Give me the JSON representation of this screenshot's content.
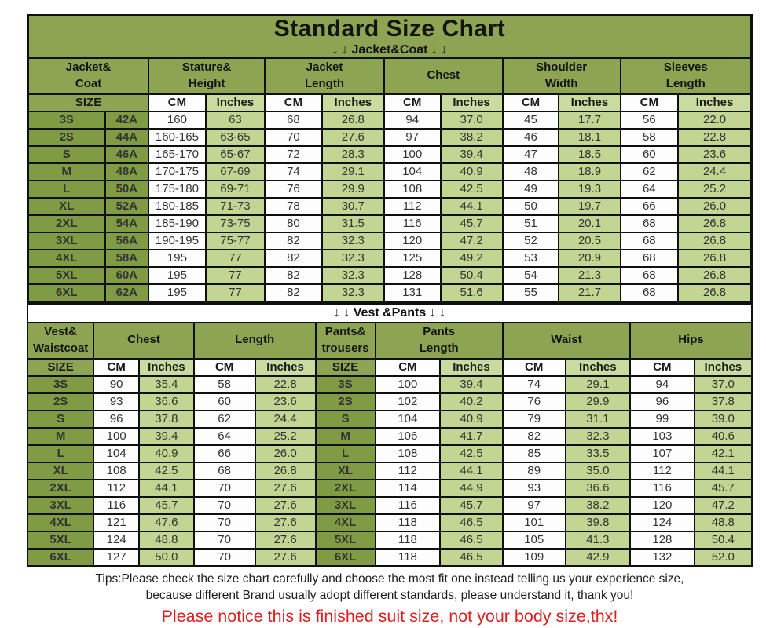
{
  "title": "Standard Size Chart",
  "colors": {
    "header_green": "#8da452",
    "size_cell_green": "#7f9b43",
    "inches_cell_green": "#c2d592",
    "cm_cell_white": "#fdfdfd",
    "border_black": "#101010",
    "notice_red": "#dd1f1f"
  },
  "jacket_section": {
    "banner": "↓ ↓  Jacket&Coat ↓ ↓",
    "groups": [
      "Jacket&\nCoat",
      "Stature&\nHeight",
      "Jacket\nLength",
      "Chest",
      "Shoulder\nWidth",
      "Sleeves\nLength"
    ],
    "subheader": {
      "size": "SIZE",
      "cm": "CM",
      "inches": "Inches"
    },
    "rows": [
      [
        "3S",
        "42A",
        "160",
        "63",
        "68",
        "26.8",
        "94",
        "37.0",
        "45",
        "17.7",
        "56",
        "22.0"
      ],
      [
        "2S",
        "44A",
        "160-165",
        "63-65",
        "70",
        "27.6",
        "97",
        "38.2",
        "46",
        "18.1",
        "58",
        "22.8"
      ],
      [
        "S",
        "46A",
        "165-170",
        "65-67",
        "72",
        "28.3",
        "100",
        "39.4",
        "47",
        "18.5",
        "60",
        "23.6"
      ],
      [
        "M",
        "48A",
        "170-175",
        "67-69",
        "74",
        "29.1",
        "104",
        "40.9",
        "48",
        "18.9",
        "62",
        "24.4"
      ],
      [
        "L",
        "50A",
        "175-180",
        "69-71",
        "76",
        "29.9",
        "108",
        "42.5",
        "49",
        "19.3",
        "64",
        "25.2"
      ],
      [
        "XL",
        "52A",
        "180-185",
        "71-73",
        "78",
        "30.7",
        "112",
        "44.1",
        "50",
        "19.7",
        "66",
        "26.0"
      ],
      [
        "2XL",
        "54A",
        "185-190",
        "73-75",
        "80",
        "31.5",
        "116",
        "45.7",
        "51",
        "20.1",
        "68",
        "26.8"
      ],
      [
        "3XL",
        "56A",
        "190-195",
        "75-77",
        "82",
        "32.3",
        "120",
        "47.2",
        "52",
        "20.5",
        "68",
        "26.8"
      ],
      [
        "4XL",
        "58A",
        "195",
        "77",
        "82",
        "32.3",
        "125",
        "49.2",
        "53",
        "20.9",
        "68",
        "26.8"
      ],
      [
        "5XL",
        "60A",
        "195",
        "77",
        "82",
        "32.3",
        "128",
        "50.4",
        "54",
        "21.3",
        "68",
        "26.8"
      ],
      [
        "6XL",
        "62A",
        "195",
        "77",
        "82",
        "32.3",
        "131",
        "51.6",
        "55",
        "21.7",
        "68",
        "26.8"
      ]
    ]
  },
  "vest_section": {
    "banner": "↓ ↓  Vest &Pants ↓ ↓",
    "groups": [
      "Vest&\nWaistcoat",
      "Chest",
      "Length",
      "Pants&\ntrousers",
      "Pants\nLength",
      "Waist",
      "Hips"
    ],
    "subheader": {
      "size": "SIZE",
      "cm": "CM",
      "inches": "Inches"
    },
    "rows": [
      [
        "3S",
        "90",
        "35.4",
        "58",
        "22.8",
        "3S",
        "100",
        "39.4",
        "74",
        "29.1",
        "94",
        "37.0"
      ],
      [
        "2S",
        "93",
        "36.6",
        "60",
        "23.6",
        "2S",
        "102",
        "40.2",
        "76",
        "29.9",
        "96",
        "37.8"
      ],
      [
        "S",
        "96",
        "37.8",
        "62",
        "24.4",
        "S",
        "104",
        "40.9",
        "79",
        "31.1",
        "99",
        "39.0"
      ],
      [
        "M",
        "100",
        "39.4",
        "64",
        "25.2",
        "M",
        "106",
        "41.7",
        "82",
        "32.3",
        "103",
        "40.6"
      ],
      [
        "L",
        "104",
        "40.9",
        "66",
        "26.0",
        "L",
        "108",
        "42.5",
        "85",
        "33.5",
        "107",
        "42.1"
      ],
      [
        "XL",
        "108",
        "42.5",
        "68",
        "26.8",
        "XL",
        "112",
        "44.1",
        "89",
        "35.0",
        "112",
        "44.1"
      ],
      [
        "2XL",
        "112",
        "44.1",
        "70",
        "27.6",
        "2XL",
        "114",
        "44.9",
        "93",
        "36.6",
        "116",
        "45.7"
      ],
      [
        "3XL",
        "116",
        "45.7",
        "70",
        "27.6",
        "3XL",
        "116",
        "45.7",
        "97",
        "38.2",
        "120",
        "47.2"
      ],
      [
        "4XL",
        "121",
        "47.6",
        "70",
        "27.6",
        "4XL",
        "118",
        "46.5",
        "101",
        "39.8",
        "124",
        "48.8"
      ],
      [
        "5XL",
        "124",
        "48.8",
        "70",
        "27.6",
        "5XL",
        "118",
        "46.5",
        "105",
        "41.3",
        "128",
        "50.4"
      ],
      [
        "6XL",
        "127",
        "50.0",
        "70",
        "27.6",
        "6XL",
        "118",
        "46.5",
        "109",
        "42.9",
        "132",
        "52.0"
      ]
    ]
  },
  "footer": {
    "tips_line1": "Tips:Please check the size chart carefully and choose the most fit one instead telling us your experience size,",
    "tips_line2": "because different Brand usually adopt different standards, please understand it, thank you!",
    "notice": "Please notice this is finished suit size, not your body size,thx!"
  }
}
